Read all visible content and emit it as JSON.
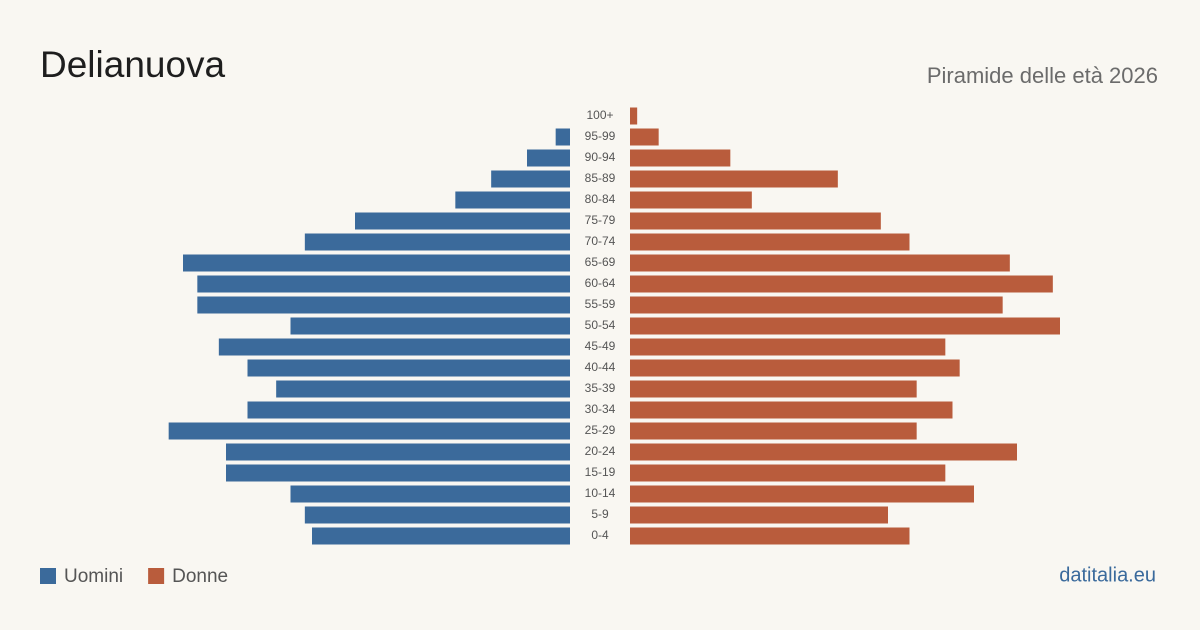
{
  "chart_data": {
    "type": "pyramid",
    "title": "Delianuova",
    "subtitle": "Piramide delle età 2026",
    "source": "datitalia.eu",
    "categories": [
      "100+",
      "95-99",
      "90-94",
      "85-89",
      "80-84",
      "75-79",
      "70-74",
      "65-69",
      "60-64",
      "55-59",
      "50-54",
      "45-49",
      "40-44",
      "35-39",
      "30-34",
      "25-29",
      "20-24",
      "15-19",
      "10-14",
      "5-9",
      "0-4"
    ],
    "series": [
      {
        "name": "Uomini",
        "color": "#3b6a9b",
        "values": [
          0,
          2,
          6,
          11,
          16,
          30,
          37,
          54,
          52,
          52,
          39,
          49,
          45,
          41,
          45,
          56,
          48,
          48,
          39,
          37,
          36
        ]
      },
      {
        "name": "Donne",
        "color": "#b95c3c",
        "values": [
          1,
          4,
          14,
          29,
          17,
          35,
          39,
          53,
          59,
          52,
          60,
          44,
          46,
          40,
          45,
          40,
          54,
          44,
          48,
          36,
          39
        ]
      }
    ],
    "xlim": [
      0,
      60
    ]
  }
}
